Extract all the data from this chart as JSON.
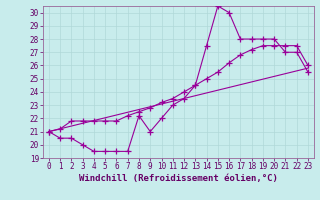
{
  "xlabel": "Windchill (Refroidissement éolien,°C)",
  "bg_color": "#c8ecec",
  "grid_color": "#aadddd",
  "line_color": "#990099",
  "xlim": [
    -0.5,
    23.5
  ],
  "ylim": [
    19,
    30.5
  ],
  "yticks": [
    19,
    20,
    21,
    22,
    23,
    24,
    25,
    26,
    27,
    28,
    29,
    30
  ],
  "xticks": [
    0,
    1,
    2,
    3,
    4,
    5,
    6,
    7,
    8,
    9,
    10,
    11,
    12,
    13,
    14,
    15,
    16,
    17,
    18,
    19,
    20,
    21,
    22,
    23
  ],
  "line1_x": [
    0,
    1,
    2,
    3,
    4,
    5,
    6,
    7,
    8,
    9,
    10,
    11,
    12,
    13,
    14,
    15,
    16,
    17,
    18,
    19,
    20,
    21,
    22,
    23
  ],
  "line1_y": [
    21.0,
    20.5,
    20.5,
    20.0,
    19.5,
    19.5,
    19.5,
    19.5,
    22.2,
    21.0,
    22.0,
    23.0,
    23.5,
    24.5,
    27.5,
    30.5,
    30.0,
    28.0,
    28.0,
    28.0,
    28.0,
    27.0,
    27.0,
    25.5
  ],
  "line2_x": [
    0,
    1,
    2,
    3,
    4,
    5,
    6,
    7,
    8,
    9,
    10,
    11,
    12,
    13,
    14,
    15,
    16,
    17,
    18,
    19,
    20,
    21,
    22,
    23
  ],
  "line2_y": [
    21.0,
    21.2,
    21.8,
    21.8,
    21.8,
    21.8,
    21.8,
    22.2,
    22.5,
    22.8,
    23.2,
    23.5,
    24.0,
    24.5,
    25.0,
    25.5,
    26.2,
    26.8,
    27.2,
    27.5,
    27.5,
    27.5,
    27.5,
    26.0
  ],
  "line3_x": [
    0,
    23
  ],
  "line3_y": [
    21.0,
    25.8
  ],
  "xlabel_fontsize": 6.5,
  "tick_fontsize": 5.5
}
